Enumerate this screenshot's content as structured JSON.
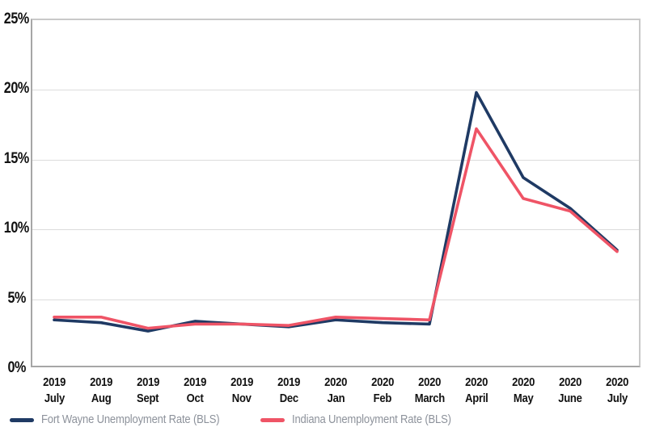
{
  "chart_data": {
    "type": "line",
    "title": "",
    "xlabel": "",
    "ylabel": "",
    "ylim": [
      0,
      25
    ],
    "y_tick_step": 5,
    "y_tick_labels": [
      "0%",
      "5%",
      "10%",
      "15%",
      "20%",
      "25%"
    ],
    "grid": true,
    "legend_position": "bottom-left",
    "x_years": [
      "2019",
      "2019",
      "2019",
      "2019",
      "2019",
      "2019",
      "2020",
      "2020",
      "2020",
      "2020",
      "2020",
      "2020",
      "2020"
    ],
    "categories": [
      "July",
      "Aug",
      "Sept",
      "Oct",
      "Nov",
      "Dec",
      "Jan",
      "Feb",
      "March",
      "April",
      "May",
      "June",
      "July"
    ],
    "series": [
      {
        "name": "Fort Wayne Unemployment Rate (BLS)",
        "color": "#1f3a64",
        "values": [
          3.4,
          3.2,
          2.6,
          3.3,
          3.1,
          2.9,
          3.4,
          3.2,
          3.1,
          19.7,
          13.6,
          11.4,
          8.4
        ]
      },
      {
        "name": "Indiana Unemployment Rate (BLS)",
        "color": "#ef5466",
        "values": [
          3.6,
          3.6,
          2.8,
          3.1,
          3.1,
          3.0,
          3.6,
          3.5,
          3.4,
          17.1,
          12.1,
          11.2,
          8.3
        ]
      }
    ]
  },
  "colors": {
    "background": "#ffffff",
    "gridline": "#dcdcdc",
    "plot_border": "#c9c9c9",
    "axis_line": "#a6a6a6",
    "tick_text": "#111111",
    "legend_text": "#8d929b"
  }
}
